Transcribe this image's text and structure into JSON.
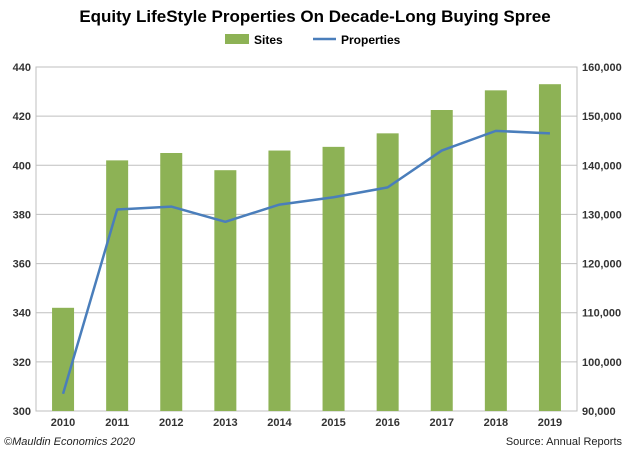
{
  "chart_data": {
    "type": "bar",
    "title": "Equity LifeStyle Properties On Decade-Long Buying Spree",
    "categories": [
      "2010",
      "2011",
      "2012",
      "2013",
      "2014",
      "2015",
      "2016",
      "2017",
      "2018",
      "2019"
    ],
    "series": [
      {
        "name": "Sites",
        "type": "bar",
        "axis": "left",
        "color": "#8db255",
        "values": [
          342,
          402,
          405,
          398,
          406,
          407.5,
          413,
          422.5,
          430.5,
          433
        ]
      },
      {
        "name": "Properties",
        "type": "line",
        "axis": "right",
        "color": "#4a7ebb",
        "values": [
          93500,
          131000,
          131600,
          128500,
          132000,
          133500,
          135500,
          143000,
          147000,
          146500
        ]
      }
    ],
    "y_left": {
      "ylim": [
        300,
        440
      ],
      "ticks": [
        300,
        320,
        340,
        360,
        380,
        400,
        420,
        440
      ],
      "tick_labels": [
        "300",
        "320",
        "340",
        "360",
        "380",
        "400",
        "420",
        "440"
      ]
    },
    "y_right": {
      "ylim": [
        90000,
        160000
      ],
      "ticks": [
        90000,
        100000,
        110000,
        120000,
        130000,
        140000,
        150000,
        160000
      ],
      "tick_labels": [
        "90,000",
        "100,000",
        "110,000",
        "120,000",
        "130,000",
        "140,000",
        "150,000",
        "160,000"
      ]
    },
    "grid": true,
    "legend_position": "top-center"
  },
  "footer": {
    "copyright": "©Mauldin Economics 2020",
    "source": "Source: Annual Reports"
  }
}
